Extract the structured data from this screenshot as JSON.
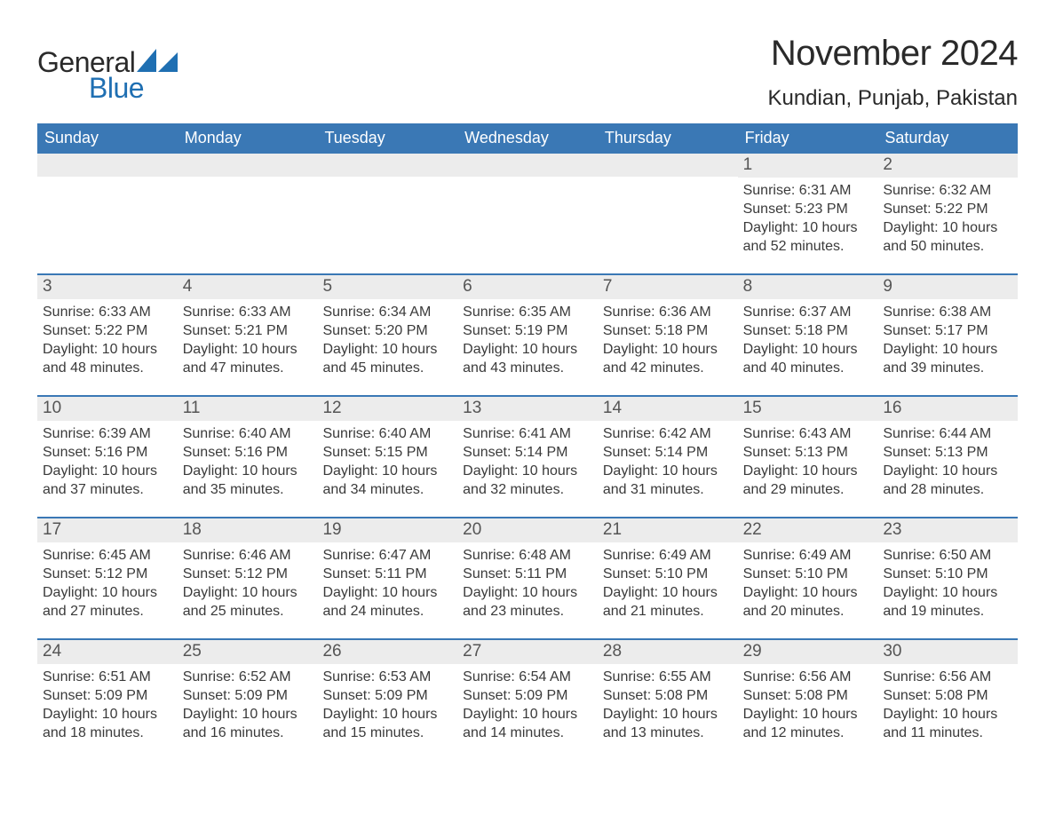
{
  "brand": {
    "word1": "General",
    "word2": "Blue"
  },
  "title": "November 2024",
  "location": "Kundian, Punjab, Pakistan",
  "colors": {
    "header_bg": "#3a78b5",
    "header_text": "#ffffff",
    "daynum_bg": "#ececec",
    "daynum_text": "#555555",
    "body_text": "#3a3a3a",
    "rule": "#3a78b5",
    "logo_blue": "#1f6fb2",
    "page_bg": "#ffffff"
  },
  "typography": {
    "title_fontsize": 40,
    "location_fontsize": 24,
    "header_fontsize": 18,
    "daynum_fontsize": 19,
    "body_fontsize": 16
  },
  "layout": {
    "columns": 7,
    "rows": 5,
    "week_start": "Sunday"
  },
  "weekdays": [
    "Sunday",
    "Monday",
    "Tuesday",
    "Wednesday",
    "Thursday",
    "Friday",
    "Saturday"
  ],
  "weeks": [
    [
      {
        "n": "",
        "sr": "",
        "ss": "",
        "dl": ""
      },
      {
        "n": "",
        "sr": "",
        "ss": "",
        "dl": ""
      },
      {
        "n": "",
        "sr": "",
        "ss": "",
        "dl": ""
      },
      {
        "n": "",
        "sr": "",
        "ss": "",
        "dl": ""
      },
      {
        "n": "",
        "sr": "",
        "ss": "",
        "dl": ""
      },
      {
        "n": "1",
        "sr": "Sunrise: 6:31 AM",
        "ss": "Sunset: 5:23 PM",
        "dl": "Daylight: 10 hours and 52 minutes."
      },
      {
        "n": "2",
        "sr": "Sunrise: 6:32 AM",
        "ss": "Sunset: 5:22 PM",
        "dl": "Daylight: 10 hours and 50 minutes."
      }
    ],
    [
      {
        "n": "3",
        "sr": "Sunrise: 6:33 AM",
        "ss": "Sunset: 5:22 PM",
        "dl": "Daylight: 10 hours and 48 minutes."
      },
      {
        "n": "4",
        "sr": "Sunrise: 6:33 AM",
        "ss": "Sunset: 5:21 PM",
        "dl": "Daylight: 10 hours and 47 minutes."
      },
      {
        "n": "5",
        "sr": "Sunrise: 6:34 AM",
        "ss": "Sunset: 5:20 PM",
        "dl": "Daylight: 10 hours and 45 minutes."
      },
      {
        "n": "6",
        "sr": "Sunrise: 6:35 AM",
        "ss": "Sunset: 5:19 PM",
        "dl": "Daylight: 10 hours and 43 minutes."
      },
      {
        "n": "7",
        "sr": "Sunrise: 6:36 AM",
        "ss": "Sunset: 5:18 PM",
        "dl": "Daylight: 10 hours and 42 minutes."
      },
      {
        "n": "8",
        "sr": "Sunrise: 6:37 AM",
        "ss": "Sunset: 5:18 PM",
        "dl": "Daylight: 10 hours and 40 minutes."
      },
      {
        "n": "9",
        "sr": "Sunrise: 6:38 AM",
        "ss": "Sunset: 5:17 PM",
        "dl": "Daylight: 10 hours and 39 minutes."
      }
    ],
    [
      {
        "n": "10",
        "sr": "Sunrise: 6:39 AM",
        "ss": "Sunset: 5:16 PM",
        "dl": "Daylight: 10 hours and 37 minutes."
      },
      {
        "n": "11",
        "sr": "Sunrise: 6:40 AM",
        "ss": "Sunset: 5:16 PM",
        "dl": "Daylight: 10 hours and 35 minutes."
      },
      {
        "n": "12",
        "sr": "Sunrise: 6:40 AM",
        "ss": "Sunset: 5:15 PM",
        "dl": "Daylight: 10 hours and 34 minutes."
      },
      {
        "n": "13",
        "sr": "Sunrise: 6:41 AM",
        "ss": "Sunset: 5:14 PM",
        "dl": "Daylight: 10 hours and 32 minutes."
      },
      {
        "n": "14",
        "sr": "Sunrise: 6:42 AM",
        "ss": "Sunset: 5:14 PM",
        "dl": "Daylight: 10 hours and 31 minutes."
      },
      {
        "n": "15",
        "sr": "Sunrise: 6:43 AM",
        "ss": "Sunset: 5:13 PM",
        "dl": "Daylight: 10 hours and 29 minutes."
      },
      {
        "n": "16",
        "sr": "Sunrise: 6:44 AM",
        "ss": "Sunset: 5:13 PM",
        "dl": "Daylight: 10 hours and 28 minutes."
      }
    ],
    [
      {
        "n": "17",
        "sr": "Sunrise: 6:45 AM",
        "ss": "Sunset: 5:12 PM",
        "dl": "Daylight: 10 hours and 27 minutes."
      },
      {
        "n": "18",
        "sr": "Sunrise: 6:46 AM",
        "ss": "Sunset: 5:12 PM",
        "dl": "Daylight: 10 hours and 25 minutes."
      },
      {
        "n": "19",
        "sr": "Sunrise: 6:47 AM",
        "ss": "Sunset: 5:11 PM",
        "dl": "Daylight: 10 hours and 24 minutes."
      },
      {
        "n": "20",
        "sr": "Sunrise: 6:48 AM",
        "ss": "Sunset: 5:11 PM",
        "dl": "Daylight: 10 hours and 23 minutes."
      },
      {
        "n": "21",
        "sr": "Sunrise: 6:49 AM",
        "ss": "Sunset: 5:10 PM",
        "dl": "Daylight: 10 hours and 21 minutes."
      },
      {
        "n": "22",
        "sr": "Sunrise: 6:49 AM",
        "ss": "Sunset: 5:10 PM",
        "dl": "Daylight: 10 hours and 20 minutes."
      },
      {
        "n": "23",
        "sr": "Sunrise: 6:50 AM",
        "ss": "Sunset: 5:10 PM",
        "dl": "Daylight: 10 hours and 19 minutes."
      }
    ],
    [
      {
        "n": "24",
        "sr": "Sunrise: 6:51 AM",
        "ss": "Sunset: 5:09 PM",
        "dl": "Daylight: 10 hours and 18 minutes."
      },
      {
        "n": "25",
        "sr": "Sunrise: 6:52 AM",
        "ss": "Sunset: 5:09 PM",
        "dl": "Daylight: 10 hours and 16 minutes."
      },
      {
        "n": "26",
        "sr": "Sunrise: 6:53 AM",
        "ss": "Sunset: 5:09 PM",
        "dl": "Daylight: 10 hours and 15 minutes."
      },
      {
        "n": "27",
        "sr": "Sunrise: 6:54 AM",
        "ss": "Sunset: 5:09 PM",
        "dl": "Daylight: 10 hours and 14 minutes."
      },
      {
        "n": "28",
        "sr": "Sunrise: 6:55 AM",
        "ss": "Sunset: 5:08 PM",
        "dl": "Daylight: 10 hours and 13 minutes."
      },
      {
        "n": "29",
        "sr": "Sunrise: 6:56 AM",
        "ss": "Sunset: 5:08 PM",
        "dl": "Daylight: 10 hours and 12 minutes."
      },
      {
        "n": "30",
        "sr": "Sunrise: 6:56 AM",
        "ss": "Sunset: 5:08 PM",
        "dl": "Daylight: 10 hours and 11 minutes."
      }
    ]
  ]
}
